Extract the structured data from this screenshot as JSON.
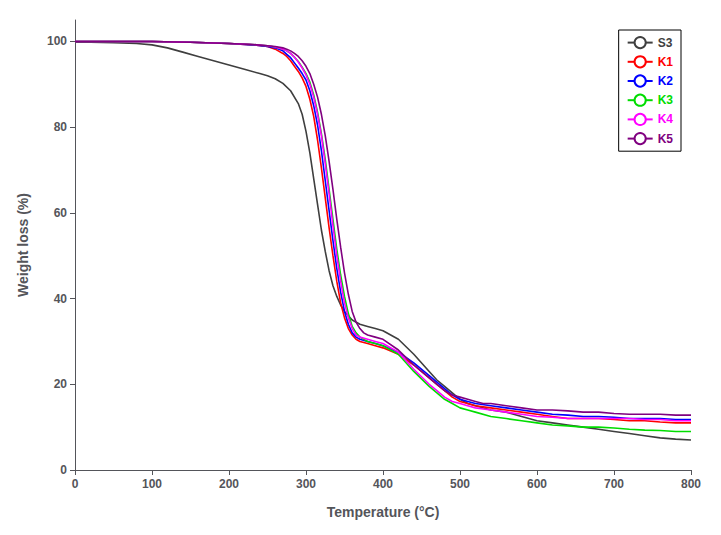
{
  "chart_data": {
    "type": "line",
    "xlabel": "Temperature (°C)",
    "ylabel": "Weight loss (%)",
    "xlim": [
      0,
      800
    ],
    "ylim": [
      0,
      105
    ],
    "xticks": [
      0,
      100,
      200,
      300,
      400,
      500,
      600,
      700,
      800
    ],
    "yticks": [
      0,
      20,
      40,
      60,
      80,
      100
    ],
    "grid": false,
    "legend": "upper right",
    "series": [
      {
        "name": "S3",
        "color": "#3f3f3f",
        "x": [
          0,
          20,
          50,
          80,
          100,
          120,
          140,
          160,
          180,
          200,
          220,
          240,
          250,
          260,
          270,
          280,
          290,
          295,
          300,
          305,
          310,
          315,
          320,
          325,
          330,
          335,
          340,
          345,
          350,
          360,
          370,
          380,
          390,
          400,
          420,
          440,
          460,
          470,
          480,
          490,
          500,
          510,
          520,
          540,
          560,
          580,
          600,
          620,
          640,
          660,
          680,
          700,
          720,
          740,
          760,
          780,
          800
        ],
        "values": [
          99.8,
          99.8,
          99.7,
          99.5,
          99.2,
          98.5,
          97.5,
          96.5,
          95.5,
          94.5,
          93.5,
          92.5,
          92.0,
          91.3,
          90.2,
          88.5,
          85.5,
          83.0,
          79.0,
          74.0,
          68.0,
          62.0,
          56.0,
          51.0,
          46.5,
          43.0,
          40.5,
          38.5,
          37.0,
          35.0,
          34.0,
          33.5,
          33.0,
          32.5,
          30.5,
          27.0,
          23.0,
          21.0,
          19.5,
          18.0,
          16.5,
          15.5,
          15.0,
          14.0,
          13.5,
          12.5,
          11.5,
          11.0,
          10.5,
          10.0,
          9.5,
          9.0,
          8.5,
          8.0,
          7.5,
          7.2,
          7.0
        ]
      },
      {
        "name": "K1",
        "color": "#ff0000",
        "x": [
          0,
          50,
          100,
          150,
          200,
          230,
          250,
          260,
          270,
          275,
          280,
          285,
          290,
          295,
          300,
          305,
          310,
          315,
          320,
          325,
          330,
          335,
          340,
          345,
          350,
          355,
          360,
          365,
          370,
          380,
          390,
          400,
          420,
          440,
          460,
          470,
          480,
          490,
          500,
          510,
          520,
          540,
          560,
          580,
          600,
          620,
          640,
          660,
          680,
          700,
          720,
          740,
          760,
          780,
          800
        ],
        "values": [
          100.0,
          100.0,
          100.0,
          99.8,
          99.5,
          99.2,
          98.8,
          98.2,
          97.2,
          96.5,
          95.5,
          94.2,
          93.0,
          91.5,
          89.5,
          86.5,
          82.5,
          77.0,
          70.5,
          63.5,
          56.5,
          50.0,
          44.0,
          39.0,
          35.5,
          33.0,
          31.5,
          30.5,
          30.0,
          29.5,
          29.0,
          28.5,
          27.0,
          24.5,
          21.5,
          20.0,
          18.5,
          17.0,
          16.0,
          15.5,
          15.0,
          14.5,
          14.0,
          13.5,
          13.0,
          12.5,
          12.0,
          12.0,
          12.0,
          11.8,
          11.5,
          11.5,
          11.2,
          11.0,
          11.0
        ]
      },
      {
        "name": "K2",
        "color": "#0000ff",
        "x": [
          0,
          50,
          100,
          150,
          200,
          230,
          250,
          260,
          270,
          275,
          280,
          285,
          290,
          295,
          300,
          305,
          310,
          315,
          320,
          325,
          330,
          335,
          340,
          345,
          350,
          355,
          360,
          365,
          370,
          380,
          390,
          400,
          420,
          440,
          460,
          470,
          480,
          490,
          500,
          510,
          520,
          540,
          560,
          580,
          600,
          620,
          640,
          660,
          680,
          700,
          720,
          740,
          760,
          780,
          800
        ],
        "values": [
          100.0,
          100.0,
          100.0,
          99.8,
          99.5,
          99.2,
          98.8,
          98.5,
          97.8,
          97.0,
          96.2,
          95.0,
          93.8,
          92.5,
          91.0,
          88.5,
          85.0,
          80.5,
          74.5,
          67.5,
          60.5,
          53.5,
          47.0,
          41.5,
          37.0,
          34.0,
          32.0,
          31.0,
          30.5,
          30.0,
          29.5,
          29.0,
          27.5,
          25.0,
          22.0,
          20.5,
          19.0,
          17.5,
          16.5,
          16.0,
          15.5,
          15.0,
          14.5,
          14.0,
          13.5,
          13.0,
          12.8,
          12.5,
          12.5,
          12.3,
          12.0,
          12.0,
          12.0,
          11.8,
          11.8
        ]
      },
      {
        "name": "K3",
        "color": "#00dd00",
        "x": [
          0,
          50,
          100,
          150,
          200,
          230,
          250,
          260,
          270,
          275,
          280,
          285,
          290,
          295,
          300,
          305,
          310,
          315,
          320,
          325,
          330,
          335,
          340,
          345,
          350,
          355,
          360,
          365,
          370,
          380,
          390,
          400,
          420,
          440,
          460,
          470,
          480,
          490,
          500,
          510,
          520,
          540,
          560,
          580,
          600,
          620,
          640,
          660,
          680,
          700,
          720,
          740,
          760,
          780,
          800
        ],
        "values": [
          100.0,
          100.0,
          100.0,
          99.8,
          99.5,
          99.3,
          99.0,
          98.7,
          98.2,
          97.8,
          97.2,
          96.3,
          95.3,
          94.0,
          92.5,
          90.5,
          87.5,
          83.5,
          78.5,
          72.5,
          65.5,
          58.5,
          51.5,
          45.5,
          40.5,
          36.5,
          33.5,
          32.0,
          31.0,
          30.0,
          29.5,
          29.0,
          27.0,
          23.0,
          19.5,
          18.0,
          16.5,
          15.5,
          14.5,
          14.0,
          13.5,
          12.5,
          12.0,
          11.5,
          11.0,
          10.5,
          10.3,
          10.0,
          10.0,
          9.8,
          9.5,
          9.3,
          9.2,
          9.0,
          9.0
        ]
      },
      {
        "name": "K4",
        "color": "#ff00ff",
        "x": [
          0,
          50,
          100,
          150,
          200,
          230,
          250,
          260,
          270,
          275,
          280,
          285,
          290,
          295,
          300,
          305,
          310,
          315,
          320,
          325,
          330,
          335,
          340,
          345,
          350,
          355,
          360,
          365,
          370,
          380,
          390,
          400,
          420,
          440,
          460,
          470,
          480,
          490,
          500,
          510,
          520,
          540,
          560,
          580,
          600,
          620,
          640,
          660,
          680,
          700,
          720,
          740,
          760,
          780,
          800
        ],
        "values": [
          100.0,
          100.0,
          100.0,
          99.8,
          99.5,
          99.3,
          99.0,
          98.7,
          98.2,
          97.8,
          97.2,
          96.3,
          95.2,
          93.8,
          92.2,
          90.0,
          87.0,
          83.0,
          78.0,
          71.5,
          64.5,
          57.0,
          50.0,
          44.0,
          39.0,
          35.5,
          33.0,
          31.5,
          31.0,
          30.5,
          30.0,
          29.5,
          27.5,
          23.5,
          20.0,
          18.5,
          17.0,
          16.0,
          15.5,
          15.0,
          14.5,
          14.0,
          13.5,
          13.0,
          12.5,
          12.3,
          12.0,
          12.0,
          12.0,
          12.0,
          12.0,
          11.8,
          11.8,
          11.5,
          11.5
        ]
      },
      {
        "name": "K5",
        "color": "#800080",
        "x": [
          0,
          50,
          100,
          150,
          200,
          230,
          250,
          260,
          270,
          275,
          280,
          285,
          290,
          295,
          300,
          305,
          310,
          315,
          320,
          325,
          330,
          335,
          340,
          345,
          350,
          355,
          360,
          365,
          370,
          375,
          380,
          390,
          400,
          420,
          440,
          460,
          470,
          480,
          490,
          500,
          510,
          520,
          530,
          540,
          560,
          580,
          600,
          620,
          640,
          660,
          680,
          700,
          720,
          740,
          760,
          780,
          800
        ],
        "values": [
          100.0,
          100.0,
          100.0,
          99.8,
          99.5,
          99.3,
          99.0,
          98.8,
          98.5,
          98.2,
          97.8,
          97.2,
          96.5,
          95.5,
          94.2,
          92.5,
          90.0,
          87.0,
          83.0,
          78.0,
          72.0,
          65.5,
          58.5,
          52.0,
          46.0,
          41.0,
          37.0,
          34.5,
          33.0,
          32.0,
          31.5,
          31.0,
          30.5,
          28.0,
          24.5,
          21.5,
          20.0,
          18.5,
          17.5,
          17.0,
          16.5,
          16.0,
          15.5,
          15.5,
          15.0,
          14.5,
          14.0,
          14.0,
          13.8,
          13.5,
          13.5,
          13.2,
          13.0,
          13.0,
          13.0,
          12.8,
          12.8
        ]
      }
    ]
  }
}
